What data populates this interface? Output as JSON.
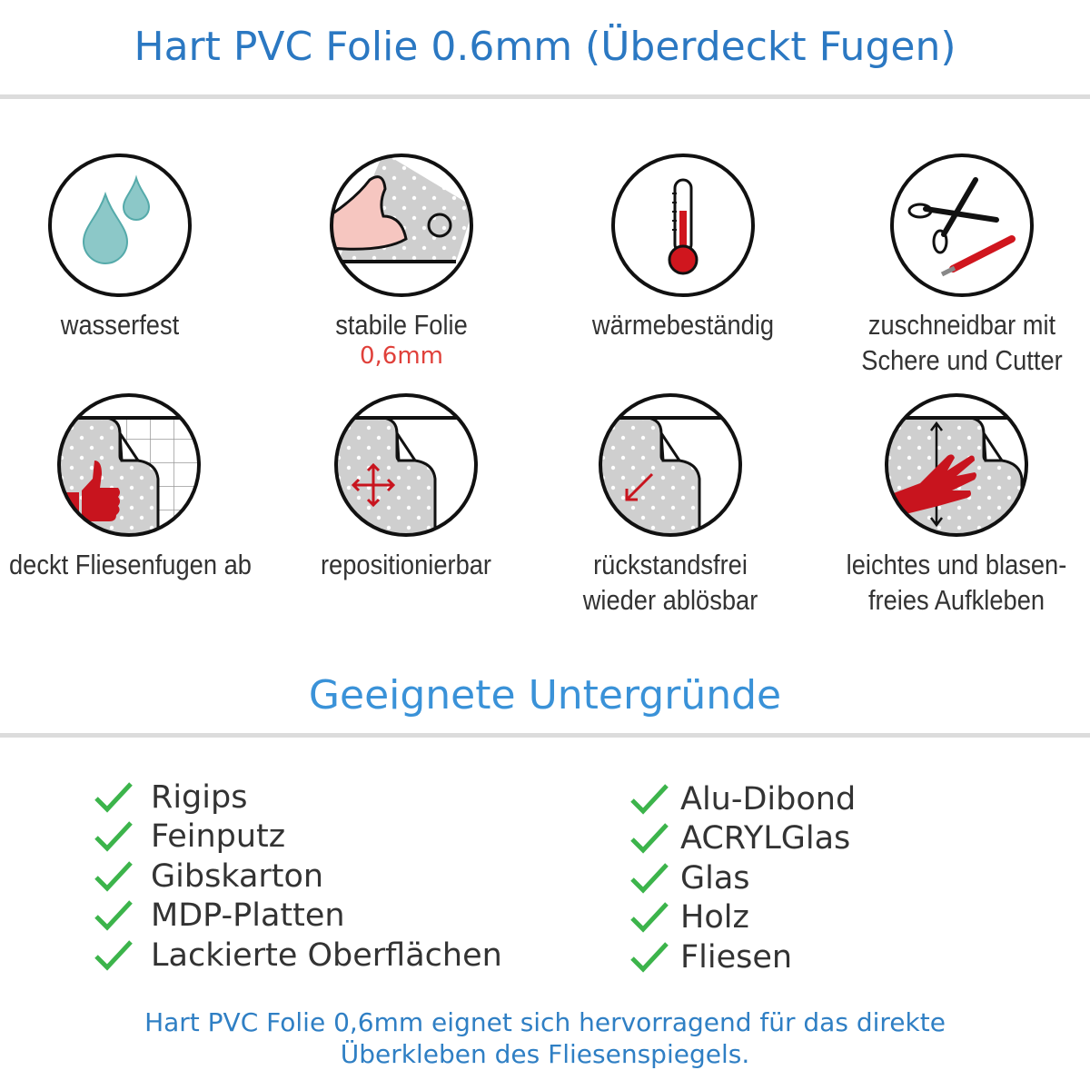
{
  "header": {
    "title": "Hart PVC Folie 0.6mm (Überdeckt Fugen)"
  },
  "features": [
    {
      "icon": "water-drops-icon",
      "lines": [
        "wasserfest"
      ]
    },
    {
      "icon": "strong-arm-icon",
      "lines": [
        "stabile Folie"
      ],
      "sub": "0,6mm"
    },
    {
      "icon": "thermometer-icon",
      "lines": [
        "wärmebeständig"
      ]
    },
    {
      "icon": "scissors-cutter-icon",
      "lines": [
        "zuschneidbar mit",
        "Schere und Cutter"
      ]
    },
    {
      "icon": "thumbs-up-tiles-icon",
      "lines": [
        "deckt Fliesenfugen ab"
      ]
    },
    {
      "icon": "move-arrows-icon",
      "lines": [
        "repositionierbar"
      ]
    },
    {
      "icon": "peel-arrow-icon",
      "lines": [
        "rückstandsfrei",
        "wieder ablösbar"
      ]
    },
    {
      "icon": "hand-smooth-icon",
      "lines": [
        "leichtes und blasen-",
        "freies Aufkleben"
      ]
    }
  ],
  "surfaces": {
    "title": "Geeignete Untergründe",
    "left": [
      "Rigips",
      "Feinputz",
      "Gibskarton",
      "MDP-Platten",
      "Lackierte Oberflächen"
    ],
    "right": [
      "Alu-Dibond",
      "ACRYLGlas",
      "Glas",
      "Holz",
      "Fliesen"
    ]
  },
  "footer": {
    "lines": [
      "Hart PVC Folie 0,6mm eignet sich hervorragend für das direkte",
      "Überkleben des Fliesenspiegels."
    ]
  },
  "colors": {
    "title": "#2b78c2",
    "accent_red": "#c8141e",
    "check": "#3cb44b",
    "drop": "#8cc8c8"
  }
}
